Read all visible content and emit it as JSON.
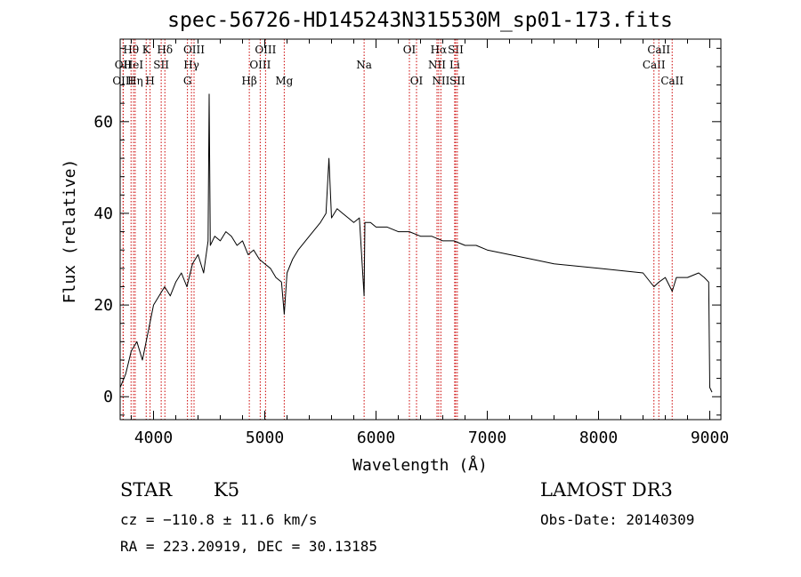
{
  "chart_data": {
    "type": "line",
    "title": "spec-56726-HD145243N315530M_sp01-173.fits",
    "xlabel": "Wavelength (Å)",
    "ylabel": "Flux (relative)",
    "xlim": [
      3700,
      9100
    ],
    "ylim": [
      -5,
      78
    ],
    "xticks": [
      4000,
      5000,
      6000,
      7000,
      8000,
      9000
    ],
    "yticks": [
      0,
      20,
      40,
      60
    ],
    "series": [
      {
        "name": "spectrum",
        "x": [
          3700,
          3750,
          3800,
          3850,
          3900,
          3950,
          4000,
          4050,
          4100,
          4150,
          4200,
          4250,
          4300,
          4350,
          4400,
          4450,
          4490,
          4500,
          4510,
          4550,
          4600,
          4650,
          4700,
          4750,
          4800,
          4850,
          4900,
          4950,
          5000,
          5050,
          5100,
          5150,
          5175,
          5200,
          5250,
          5300,
          5400,
          5500,
          5550,
          5577,
          5600,
          5650,
          5700,
          5750,
          5800,
          5850,
          5893,
          5900,
          5950,
          6000,
          6100,
          6200,
          6300,
          6400,
          6500,
          6600,
          6700,
          6800,
          6900,
          7000,
          7200,
          7400,
          7600,
          7800,
          8000,
          8200,
          8400,
          8498,
          8542,
          8600,
          8662,
          8700,
          8800,
          8900,
          8950,
          8990,
          9000,
          9020
        ],
        "y": [
          2,
          5,
          10,
          12,
          8,
          14,
          20,
          22,
          24,
          22,
          25,
          27,
          24,
          29,
          31,
          27,
          34,
          66,
          33,
          35,
          34,
          36,
          35,
          33,
          34,
          31,
          32,
          30,
          29,
          28,
          26,
          25,
          18,
          27,
          30,
          32,
          35,
          38,
          40,
          52,
          39,
          41,
          40,
          39,
          38,
          39,
          22,
          38,
          38,
          37,
          37,
          36,
          36,
          35,
          35,
          34,
          34,
          33,
          33,
          32,
          31,
          30,
          29,
          28.5,
          28,
          27.5,
          27,
          24,
          25,
          26,
          23,
          26,
          26,
          27,
          26,
          25,
          2,
          1
        ]
      }
    ],
    "emission_lines": [
      {
        "label": "OII",
        "wavelength": 3727,
        "row": 1
      },
      {
        "label": "OIII",
        "wavelength": 3727,
        "row": 2
      },
      {
        "label": "Hθ",
        "wavelength": 3798,
        "row": 0
      },
      {
        "label": "HeI",
        "wavelength": 3820,
        "row": 1
      },
      {
        "label": "Hη",
        "wavelength": 3835,
        "row": 2
      },
      {
        "label": "K",
        "wavelength": 3934,
        "row": 0
      },
      {
        "label": "H",
        "wavelength": 3969,
        "row": 2
      },
      {
        "label": "SII",
        "wavelength": 4069,
        "row": 1
      },
      {
        "label": "Hδ",
        "wavelength": 4102,
        "row": 0
      },
      {
        "label": "G",
        "wavelength": 4305,
        "row": 2
      },
      {
        "label": "Hγ",
        "wavelength": 4341,
        "row": 1
      },
      {
        "label": "OIII",
        "wavelength": 4364,
        "row": 0
      },
      {
        "label": "Hβ",
        "wavelength": 4861,
        "row": 2
      },
      {
        "label": "OIII",
        "wavelength": 4959,
        "row": 1
      },
      {
        "label": "OIII",
        "wavelength": 5007,
        "row": 0
      },
      {
        "label": "Mg",
        "wavelength": 5175,
        "row": 2
      },
      {
        "label": "Na",
        "wavelength": 5893,
        "row": 1
      },
      {
        "label": "OI",
        "wavelength": 6300,
        "row": 0
      },
      {
        "label": "OI",
        "wavelength": 6364,
        "row": 2
      },
      {
        "label": "NII",
        "wavelength": 6548,
        "row": 1
      },
      {
        "label": "Hα",
        "wavelength": 6563,
        "row": 0
      },
      {
        "label": "NII",
        "wavelength": 6583,
        "row": 2
      },
      {
        "label": "Li",
        "wavelength": 6707,
        "row": 1
      },
      {
        "label": "SII",
        "wavelength": 6716,
        "row": 0
      },
      {
        "label": "SII",
        "wavelength": 6731,
        "row": 2
      },
      {
        "label": "CaII",
        "wavelength": 8498,
        "row": 1
      },
      {
        "label": "CaII",
        "wavelength": 8542,
        "row": 0
      },
      {
        "label": "CaII",
        "wavelength": 8662,
        "row": 2
      }
    ],
    "line_color": "#cc0000"
  },
  "info": {
    "object_class": "STAR",
    "subclass": "K5",
    "survey": "LAMOST DR3",
    "cz": "cz = −110.8 ± 11.6 km/s",
    "obs_date": "Obs-Date: 20140309",
    "coords": "RA = 223.20919, DEC =  30.13185"
  }
}
